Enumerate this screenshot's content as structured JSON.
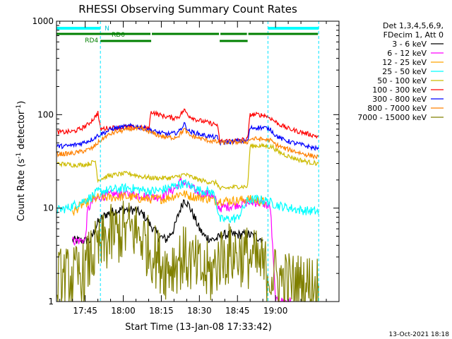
{
  "chart_data": {
    "type": "line",
    "title": "RHESSI Observing Summary Count Rates",
    "xlabel": "Start Time (13-Jan-08 17:33:42)",
    "ylabel_main": "Count Rate (s",
    "ylabel_sup1": "-1",
    "ylabel_mid": " detector",
    "ylabel_sup2": "-1",
    "ylabel_end": ")",
    "y_scale": "log",
    "ylim": [
      1,
      1000
    ],
    "xlim": [
      "17:33:42",
      "19:25:00"
    ],
    "x_ticks": [
      "17:45",
      "18:00",
      "18:15",
      "18:30",
      "18:45",
      "19:00"
    ],
    "y_ticks": [
      "1",
      "10",
      "100",
      "1000"
    ],
    "grid": false,
    "legend_header": [
      "Det 1,3,4,5,6,9,",
      "FDecim 1, Att 0"
    ],
    "legend_position": "top-right",
    "series": [
      {
        "name": "3 - 6 keV",
        "color": "#000000",
        "points": [
          [
            "17:40",
            4.5
          ],
          [
            "17:47",
            4.5
          ],
          [
            "17:50",
            7
          ],
          [
            "17:53",
            8.5
          ],
          [
            "17:56",
            9.2
          ],
          [
            "17:59",
            9.6
          ],
          [
            "18:02",
            9.7
          ],
          [
            "18:05",
            9.4
          ],
          [
            "18:08",
            8.5
          ],
          [
            "18:10",
            7
          ],
          [
            "18:14",
            5
          ],
          [
            "18:17",
            4.6
          ],
          [
            "18:20",
            6
          ],
          [
            "18:22",
            9
          ],
          [
            "18:24",
            12.5
          ],
          [
            "18:26",
            10.5
          ],
          [
            "18:28",
            8
          ],
          [
            "18:30",
            6
          ],
          [
            "18:32",
            5
          ],
          [
            "18:35",
            4.6
          ],
          [
            "18:37",
            4.7
          ],
          [
            "18:39",
            5.2
          ],
          [
            "18:45",
            5.2
          ],
          [
            "18:49",
            5.2
          ],
          [
            "18:52",
            5
          ],
          [
            "18:55",
            4.6
          ]
        ]
      },
      {
        "name": "6 - 12 keV",
        "color": "#ff00ff",
        "points": [
          [
            "17:40",
            4.5
          ],
          [
            "17:45",
            4.5
          ],
          [
            "17:46",
            9.5
          ],
          [
            "17:48",
            12
          ],
          [
            "17:52",
            13.5
          ],
          [
            "17:56",
            14
          ],
          [
            "18:00",
            14.2
          ],
          [
            "18:04",
            14
          ],
          [
            "18:08",
            13.5
          ],
          [
            "18:12",
            13
          ],
          [
            "18:16",
            13.5
          ],
          [
            "18:20",
            16
          ],
          [
            "18:23",
            19.5
          ],
          [
            "18:26",
            17
          ],
          [
            "18:30",
            14.5
          ],
          [
            "18:34",
            14
          ],
          [
            "18:36",
            12.5
          ],
          [
            "18:38",
            10
          ],
          [
            "18:42",
            10.5
          ],
          [
            "18:45",
            11
          ],
          [
            "18:49",
            11.5
          ],
          [
            "18:53",
            11.5
          ],
          [
            "18:56",
            11
          ],
          [
            "18:58",
            10
          ],
          [
            "19:00",
            1
          ],
          [
            "19:06",
            1
          ]
        ]
      },
      {
        "name": "12 - 25 keV",
        "color": "#ffa500",
        "points": [
          [
            "17:40",
            9
          ],
          [
            "17:43",
            10.5
          ],
          [
            "17:47",
            12
          ],
          [
            "17:50",
            13
          ],
          [
            "17:53",
            13
          ],
          [
            "17:56",
            13
          ],
          [
            "18:00",
            13.3
          ],
          [
            "18:04",
            13
          ],
          [
            "18:08",
            12.5
          ],
          [
            "18:12",
            12.5
          ],
          [
            "18:16",
            12.5
          ],
          [
            "18:20",
            13.5
          ],
          [
            "18:23",
            14.5
          ],
          [
            "18:26",
            13.5
          ],
          [
            "18:30",
            13
          ],
          [
            "18:34",
            12.5
          ],
          [
            "18:36",
            12
          ],
          [
            "18:38",
            12
          ],
          [
            "18:42",
            12
          ],
          [
            "18:45",
            12
          ],
          [
            "18:49",
            12.5
          ],
          [
            "18:53",
            12
          ],
          [
            "18:56",
            11.5
          ]
        ]
      },
      {
        "name": "25 - 50 keV",
        "color": "#00ffff",
        "points": [
          [
            "17:34",
            9.5
          ],
          [
            "17:38",
            10
          ],
          [
            "17:43",
            11.5
          ],
          [
            "17:47",
            13
          ],
          [
            "17:50",
            15
          ],
          [
            "17:54",
            15.5
          ],
          [
            "17:58",
            16
          ],
          [
            "18:02",
            16.5
          ],
          [
            "18:05",
            16
          ],
          [
            "18:08",
            15.5
          ],
          [
            "18:12",
            15.2
          ],
          [
            "18:15",
            15.5
          ],
          [
            "18:18",
            16.5
          ],
          [
            "18:21",
            17.5
          ],
          [
            "18:24",
            18.5
          ],
          [
            "18:27",
            17
          ],
          [
            "18:30",
            15.5
          ],
          [
            "18:34",
            15
          ],
          [
            "18:36",
            14
          ],
          [
            "18:38",
            7.5
          ],
          [
            "18:45",
            7.8
          ],
          [
            "18:49",
            12
          ],
          [
            "18:53",
            12.5
          ],
          [
            "18:56",
            12
          ],
          [
            "18:59",
            11.2
          ],
          [
            "19:02",
            10.5
          ],
          [
            "19:06",
            10
          ],
          [
            "19:10",
            9.5
          ],
          [
            "19:14",
            9.3
          ],
          [
            "19:17",
            9.2
          ]
        ]
      },
      {
        "name": "50 - 100 keV",
        "color": "#ccbb00",
        "points": [
          [
            "17:34",
            30
          ],
          [
            "17:40",
            29
          ],
          [
            "17:44",
            29
          ],
          [
            "17:47",
            30
          ],
          [
            "17:49",
            32
          ],
          [
            "17:50",
            20
          ],
          [
            "17:54",
            22
          ],
          [
            "17:58",
            23
          ],
          [
            "18:02",
            23.5
          ],
          [
            "18:05",
            22.5
          ],
          [
            "18:08",
            21.5
          ],
          [
            "18:12",
            21
          ],
          [
            "18:15",
            21
          ],
          [
            "18:18",
            21
          ],
          [
            "18:21",
            21.5
          ],
          [
            "18:24",
            23
          ],
          [
            "18:27",
            21.5
          ],
          [
            "18:30",
            20
          ],
          [
            "18:34",
            19
          ],
          [
            "18:37",
            18.5
          ],
          [
            "18:38",
            16
          ],
          [
            "18:45",
            17
          ],
          [
            "18:49",
            17
          ],
          [
            "18:50",
            46
          ],
          [
            "18:53",
            46.5
          ],
          [
            "18:56",
            46
          ],
          [
            "18:59",
            45
          ],
          [
            "19:01",
            40
          ],
          [
            "19:05",
            36
          ],
          [
            "19:09",
            33
          ],
          [
            "19:13",
            31
          ],
          [
            "19:17",
            30
          ]
        ]
      },
      {
        "name": "100 - 300 keV",
        "color": "#ff0000",
        "points": [
          [
            "17:34",
            65
          ],
          [
            "17:37",
            65
          ],
          [
            "17:40",
            66
          ],
          [
            "17:43",
            70
          ],
          [
            "17:46",
            78
          ],
          [
            "17:49",
            95
          ],
          [
            "17:50",
            105
          ],
          [
            "17:51",
            70
          ],
          [
            "17:54",
            72
          ],
          [
            "17:58",
            73
          ],
          [
            "18:02",
            74
          ],
          [
            "18:05",
            73
          ],
          [
            "18:08",
            72
          ],
          [
            "18:10",
            71
          ],
          [
            "18:11",
            108
          ],
          [
            "18:14",
            100
          ],
          [
            "18:17",
            95
          ],
          [
            "18:20",
            92
          ],
          [
            "18:22",
            96
          ],
          [
            "18:24",
            112
          ],
          [
            "18:26",
            97
          ],
          [
            "18:29",
            88
          ],
          [
            "18:32",
            84
          ],
          [
            "18:35",
            80
          ],
          [
            "18:37",
            78
          ],
          [
            "18:38",
            52
          ],
          [
            "18:45",
            53
          ],
          [
            "18:49",
            55
          ],
          [
            "18:50",
            100
          ],
          [
            "18:53",
            100
          ],
          [
            "18:56",
            98
          ],
          [
            "18:58",
            92
          ],
          [
            "19:01",
            80
          ],
          [
            "19:05",
            71
          ],
          [
            "19:09",
            66
          ],
          [
            "19:13",
            62
          ],
          [
            "19:17",
            58
          ]
        ]
      },
      {
        "name": "300 - 800 keV",
        "color": "#0000ff",
        "points": [
          [
            "17:34",
            46
          ],
          [
            "17:37",
            46
          ],
          [
            "17:40",
            47
          ],
          [
            "17:43",
            49
          ],
          [
            "17:46",
            52
          ],
          [
            "17:48",
            55
          ],
          [
            "17:50",
            60
          ],
          [
            "17:53",
            65
          ],
          [
            "17:56",
            71
          ],
          [
            "18:00",
            74
          ],
          [
            "18:04",
            76
          ],
          [
            "18:07",
            73
          ],
          [
            "18:10",
            70
          ],
          [
            "18:11",
            68
          ],
          [
            "18:14",
            64
          ],
          [
            "18:17",
            62
          ],
          [
            "18:20",
            63
          ],
          [
            "18:22",
            66
          ],
          [
            "18:24",
            80
          ],
          [
            "18:26",
            66
          ],
          [
            "18:29",
            63
          ],
          [
            "18:32",
            60
          ],
          [
            "18:35",
            58
          ],
          [
            "18:37",
            57
          ],
          [
            "18:38",
            50
          ],
          [
            "18:45",
            52
          ],
          [
            "18:49",
            52
          ],
          [
            "18:50",
            72
          ],
          [
            "18:53",
            73
          ],
          [
            "18:56",
            72
          ],
          [
            "18:58",
            70
          ],
          [
            "19:00",
            60
          ],
          [
            "19:03",
            54
          ],
          [
            "19:07",
            50
          ],
          [
            "19:11",
            47
          ],
          [
            "19:15",
            44
          ],
          [
            "19:17",
            43
          ]
        ]
      },
      {
        "name": "800 - 7000 keV",
        "color": "#ff8000",
        "points": [
          [
            "17:34",
            38
          ],
          [
            "17:37",
            38
          ],
          [
            "17:40",
            38.5
          ],
          [
            "17:43",
            40
          ],
          [
            "17:46",
            42
          ],
          [
            "17:48",
            44
          ],
          [
            "17:50",
            50
          ],
          [
            "17:53",
            58
          ],
          [
            "17:56",
            64
          ],
          [
            "18:00",
            68
          ],
          [
            "18:04",
            71
          ],
          [
            "18:07",
            70
          ],
          [
            "18:10",
            66
          ],
          [
            "18:11",
            64
          ],
          [
            "18:14",
            60
          ],
          [
            "18:17",
            57
          ],
          [
            "18:20",
            57
          ],
          [
            "18:22",
            60
          ],
          [
            "18:24",
            70
          ],
          [
            "18:26",
            60
          ],
          [
            "18:29",
            57
          ],
          [
            "18:32",
            54
          ],
          [
            "18:35",
            52
          ],
          [
            "18:37",
            51
          ],
          [
            "18:38",
            50
          ],
          [
            "18:45",
            51
          ],
          [
            "18:49",
            51
          ],
          [
            "18:50",
            55
          ],
          [
            "18:53",
            55
          ],
          [
            "18:56",
            54
          ],
          [
            "18:58",
            53
          ],
          [
            "19:00",
            48
          ],
          [
            "19:03",
            44
          ],
          [
            "19:07",
            41
          ],
          [
            "19:11",
            38
          ],
          [
            "19:15",
            36
          ],
          [
            "19:17",
            35
          ]
        ]
      },
      {
        "name": "7000 - 15000 keV",
        "color": "#808000",
        "points": [
          [
            "17:34",
            1.7
          ],
          [
            "17:40",
            1.8
          ],
          [
            "17:45",
            2
          ],
          [
            "17:47",
            3
          ],
          [
            "17:50",
            3.5
          ],
          [
            "17:53",
            4.3
          ],
          [
            "17:56",
            5.2
          ],
          [
            "18:00",
            5.6
          ],
          [
            "18:04",
            5.8
          ],
          [
            "18:07",
            5
          ],
          [
            "18:10",
            3.8
          ],
          [
            "18:14",
            2.8
          ],
          [
            "18:17",
            2.3
          ],
          [
            "18:20",
            2.6
          ],
          [
            "18:24",
            3
          ],
          [
            "18:28",
            2.4
          ],
          [
            "18:32",
            2
          ],
          [
            "18:35",
            2
          ],
          [
            "18:38",
            3
          ],
          [
            "18:42",
            3.2
          ],
          [
            "18:45",
            3.2
          ],
          [
            "18:49",
            3
          ],
          [
            "18:53",
            2.6
          ],
          [
            "18:56",
            2.2
          ],
          [
            "19:00",
            1.8
          ],
          [
            "19:05",
            1.6
          ],
          [
            "19:10",
            1.5
          ],
          [
            "19:17",
            1.5
          ]
        ]
      }
    ],
    "annotations": {
      "night_flag": "N",
      "night_intervals": [
        [
          "17:33:42",
          "17:51"
        ],
        [
          "18:57",
          "19:17"
        ]
      ],
      "night_markers": [
        "17:51",
        "18:57",
        "19:17"
      ],
      "rd0_flag": "RD0",
      "rd0_intervals": [
        [
          "17:33:42",
          "18:11"
        ],
        [
          "18:11",
          "18:38"
        ],
        [
          "18:38",
          "18:49"
        ],
        [
          "18:49",
          "19:17"
        ]
      ],
      "rd4_flag": "RD4",
      "rd4_intervals": [
        [
          "17:51",
          "18:11"
        ],
        [
          "18:38",
          "18:49"
        ]
      ]
    },
    "timestamp": "13-Oct-2021 18:18"
  }
}
